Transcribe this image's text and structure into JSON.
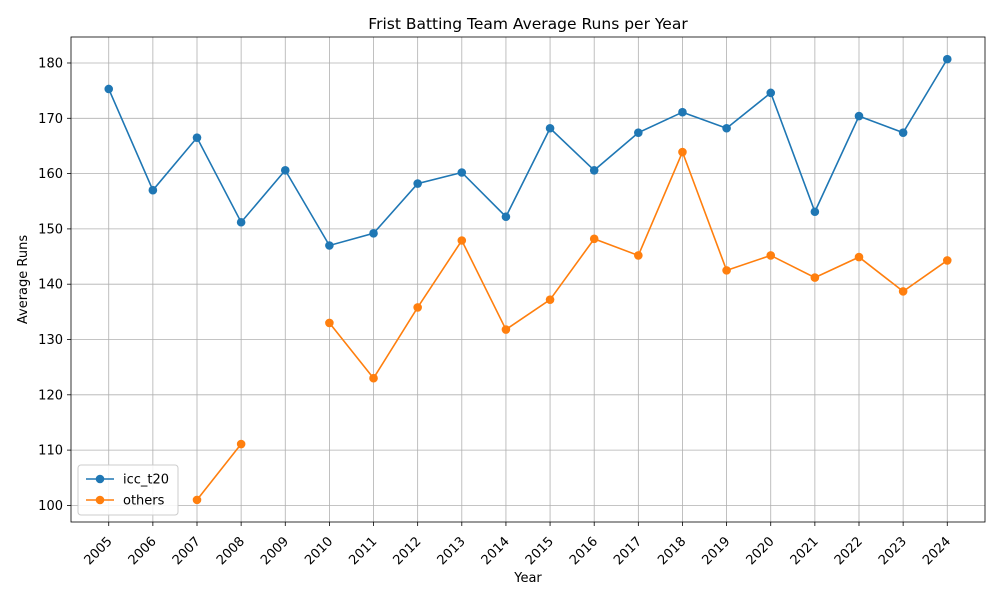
{
  "chart_data": {
    "type": "line",
    "title": "Frist Batting Team Average Runs per Year",
    "xlabel": "Year",
    "ylabel": "Average Runs",
    "x": [
      "2005",
      "2006",
      "2007",
      "2008",
      "2009",
      "2010",
      "2011",
      "2012",
      "2013",
      "2014",
      "2015",
      "2016",
      "2017",
      "2018",
      "2019",
      "2020",
      "2021",
      "2022",
      "2023",
      "2024"
    ],
    "ylim": [
      97,
      184.7
    ],
    "yticks": [
      100,
      110,
      120,
      130,
      140,
      150,
      160,
      170,
      180
    ],
    "grid": true,
    "legend_position": "lower-left",
    "series": [
      {
        "name": "icc_t20",
        "color": "#1f77b4",
        "values": [
          175.3,
          157.0,
          166.5,
          151.2,
          160.6,
          147.0,
          149.2,
          158.2,
          160.2,
          152.2,
          168.2,
          160.6,
          167.4,
          171.1,
          168.2,
          174.6,
          153.1,
          170.4,
          167.4,
          180.7
        ]
      },
      {
        "name": "others",
        "color": "#ff7f0e",
        "values": [
          null,
          null,
          101.0,
          111.1,
          null,
          133.0,
          123.0,
          135.8,
          147.9,
          131.8,
          137.2,
          148.2,
          145.2,
          163.9,
          142.5,
          145.2,
          141.2,
          144.9,
          138.7,
          144.3
        ]
      }
    ]
  }
}
